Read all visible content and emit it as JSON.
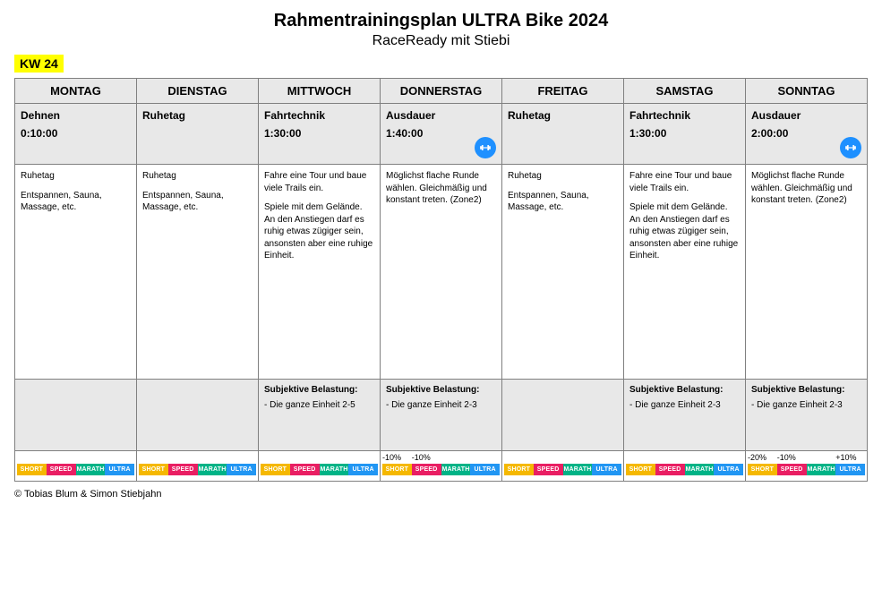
{
  "header": {
    "title": "Rahmentrainingsplan ULTRA Bike 2024",
    "subtitle": "RaceReady mit Stiebi",
    "week_label": "KW 24"
  },
  "day_names": [
    "MONTAG",
    "DIENSTAG",
    "MITTWOCH",
    "DONNERSTAG",
    "FREITAG",
    "SAMSTAG",
    "SONNTAG"
  ],
  "days": [
    {
      "activity": "Dehnen",
      "duration": "0:10:00",
      "has_icon": false,
      "desc": "Ruhetag\n\nEntspannen, Sauna, Massage, etc.",
      "load_title": "",
      "load_text": "",
      "pct": [
        "",
        "",
        "",
        ""
      ]
    },
    {
      "activity": "Ruhetag",
      "duration": "",
      "has_icon": false,
      "desc": "Ruhetag\n\nEntspannen, Sauna, Massage, etc.",
      "load_title": "",
      "load_text": "",
      "pct": [
        "",
        "",
        "",
        ""
      ]
    },
    {
      "activity": "Fahrtechnik",
      "duration": "1:30:00",
      "has_icon": false,
      "desc": "Fahre eine Tour und baue viele Trails ein.\n\nSpiele mit dem Gelände. An den Anstiegen darf es ruhig etwas zügiger sein, ansonsten aber eine ruhige Einheit.",
      "load_title": "Subjektive Belastung:",
      "load_text": "- Die ganze Einheit 2-5",
      "pct": [
        "",
        "",
        "",
        ""
      ]
    },
    {
      "activity": "Ausdauer",
      "duration": "1:40:00",
      "has_icon": true,
      "desc": "Möglichst flache Runde wählen. Gleichmäßig und konstant treten. (Zone2)",
      "load_title": "Subjektive Belastung:",
      "load_text": "- Die ganze Einheit 2-3",
      "pct": [
        "-10%",
        "-10%",
        "",
        ""
      ]
    },
    {
      "activity": "Ruhetag",
      "duration": "",
      "has_icon": false,
      "desc": "Ruhetag\n\nEntspannen, Sauna, Massage, etc.",
      "load_title": "",
      "load_text": "",
      "pct": [
        "",
        "",
        "",
        ""
      ]
    },
    {
      "activity": "Fahrtechnik",
      "duration": "1:30:00",
      "has_icon": false,
      "desc": "Fahre eine Tour und baue viele Trails ein.\n\nSpiele mit dem Gelände. An den Anstiegen darf es ruhig etwas zügiger sein, ansonsten aber eine ruhige Einheit.",
      "load_title": "Subjektive Belastung:",
      "load_text": "- Die ganze Einheit 2-3",
      "pct": [
        "",
        "",
        "",
        ""
      ]
    },
    {
      "activity": "Ausdauer",
      "duration": "2:00:00",
      "has_icon": true,
      "desc": "Möglichst flache Runde wählen. Gleichmäßig und konstant treten. (Zone2)",
      "load_title": "Subjektive Belastung:",
      "load_text": "- Die ganze Einheit 2-3",
      "pct": [
        "-20%",
        "-10%",
        "",
        "+10%"
      ]
    }
  ],
  "tags": {
    "labels": [
      "SHORT",
      "SPEED",
      "MARATHON",
      "ULTRA"
    ],
    "colors": [
      "#f5b800",
      "#e91e63",
      "#00b386",
      "#2196f3"
    ]
  },
  "footer": {
    "copyright": "© Tobias Blum & Simon Stiebjahn"
  }
}
